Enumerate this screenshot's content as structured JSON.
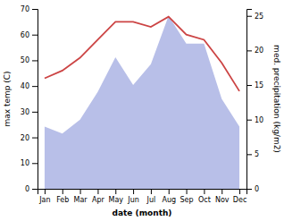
{
  "chart_data": {
    "type": "line",
    "xlabel": "date (month)",
    "ylabel": "max temp (C)",
    "y2label": "med. precipitation (kg/m2)",
    "categories": [
      "Jan",
      "Feb",
      "Mar",
      "Apr",
      "May",
      "Jun",
      "Jul",
      "Aug",
      "Sep",
      "Oct",
      "Nov",
      "Dec"
    ],
    "series": [
      {
        "type": "area",
        "axis": "y2",
        "color": "#b8bfe8",
        "values": [
          9,
          8,
          10,
          14,
          19,
          15,
          18,
          25,
          21,
          21,
          13,
          9
        ]
      },
      {
        "type": "line",
        "color": "#cc4444",
        "values": [
          43,
          46,
          51,
          58,
          65,
          65,
          63,
          67,
          60,
          58,
          49,
          38
        ]
      }
    ],
    "ylim": [
      0,
      70
    ],
    "yticks": [
      0,
      10,
      20,
      30,
      40,
      50,
      60,
      70
    ],
    "y2lim": [
      0,
      26
    ],
    "y2ticks": [
      0,
      5,
      10,
      15,
      20,
      25
    ],
    "grid": false
  }
}
